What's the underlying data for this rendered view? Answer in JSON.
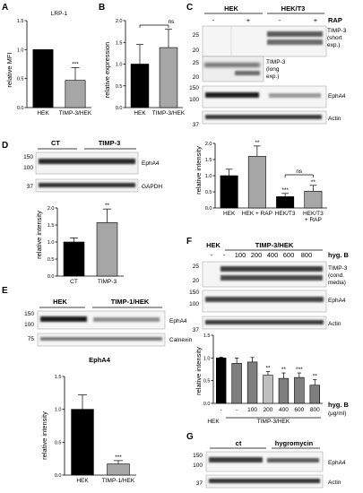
{
  "panels": {
    "A": {
      "label": "A",
      "title": "LRP-1",
      "ylabel": "relative MFI",
      "ticks": [
        "0.0",
        "0.5",
        "1.0",
        "1.5"
      ],
      "sig": "***",
      "chart_data": {
        "type": "bar",
        "categories": [
          "HEK",
          "TIMP-3/HEK"
        ],
        "values": [
          1.0,
          0.47
        ],
        "errors": [
          0,
          0.22
        ],
        "ylabel": "relative MFI",
        "ylim": [
          0,
          1.5
        ],
        "colors": [
          "#000000",
          "#a6a6a6"
        ]
      }
    },
    "B": {
      "label": "B",
      "ylabel": "relative expression",
      "ticks": [
        "0.0",
        "0.5",
        "1.0",
        "1.5",
        "2.0"
      ],
      "sig": "ns",
      "chart_data": {
        "type": "bar",
        "categories": [
          "HEK",
          "TIMP-3/HEK"
        ],
        "values": [
          1.0,
          1.38
        ],
        "errors": [
          0.45,
          0.42
        ],
        "ylabel": "relative expression",
        "ylim": [
          0,
          2.0
        ],
        "colors": [
          "#000000",
          "#a6a6a6"
        ]
      }
    },
    "C": {
      "label": "C",
      "group_hek": "HEK",
      "group_t3": "HEK/T3",
      "rap_label": "RAP",
      "rap_signs": [
        "-",
        "+",
        "-",
        "+"
      ],
      "blots": {
        "timp3_short": {
          "label_lines": [
            "TIMP-3",
            "(short",
            "exp.)"
          ],
          "markers": [
            "25",
            "20"
          ]
        },
        "timp3_long": {
          "label_lines": [
            "TIMP-3",
            "(long",
            "exp.)"
          ],
          "markers": [
            "25",
            "20"
          ]
        },
        "epha4": {
          "label": "EphA4",
          "markers": [
            "150",
            "100"
          ]
        },
        "actin": {
          "label": "Actin",
          "markers": [
            "37"
          ]
        }
      },
      "ylabel": "relative intensity",
      "ticks": [
        "0.0",
        "0.5",
        "1.0",
        "1.5",
        "2.0"
      ],
      "sig": [
        "",
        "**",
        "***",
        "**"
      ],
      "ns_label": "ns",
      "x_label_lines": [
        [
          "HEK"
        ],
        [
          "HEK + RAP"
        ],
        [
          "HEK/T3"
        ],
        [
          "HEK/T3",
          "+ RAP"
        ]
      ],
      "chart_data": {
        "type": "bar",
        "categories": [
          "HEK",
          "HEK + RAP",
          "HEK/T3",
          "HEK/T3 + RAP"
        ],
        "values": [
          1.0,
          1.6,
          0.35,
          0.52
        ],
        "errors": [
          0.2,
          0.32,
          0.1,
          0.18
        ],
        "ylabel": "relative intensity",
        "ylim": [
          0,
          2.0
        ],
        "colors": [
          "#000000",
          "#a6a6a6",
          "#000000",
          "#a6a6a6"
        ]
      }
    },
    "D": {
      "label": "D",
      "groups": [
        "CT",
        "TIMP-3"
      ],
      "blots": {
        "epha4": {
          "label": "EphA4",
          "markers": [
            "150",
            "100"
          ]
        },
        "gapdh": {
          "label": "GAPDH",
          "markers": [
            "37"
          ]
        }
      },
      "ylabel": "relative intensity",
      "ticks": [
        "0.0",
        "0.5",
        "1.0",
        "1.5",
        "2.0"
      ],
      "sig": "**",
      "chart_data": {
        "type": "bar",
        "categories": [
          "CT",
          "TIMP-3"
        ],
        "values": [
          1.0,
          1.57
        ],
        "errors": [
          0.12,
          0.4
        ],
        "ylabel": "relative intensity",
        "ylim": [
          0,
          2.0
        ],
        "colors": [
          "#000000",
          "#a6a6a6"
        ]
      }
    },
    "E": {
      "label": "E",
      "groups": [
        "HEK",
        "TIMP-1/HEK"
      ],
      "blots": {
        "epha4": {
          "label": "EphA4",
          "markers": [
            "150",
            "100"
          ]
        },
        "calnexin": {
          "label": "Calnexin",
          "markers": [
            "75"
          ]
        }
      },
      "chart_title": "EphA4",
      "ylabel": "relative intensity",
      "ticks": [
        "0.0",
        "0.5",
        "1.0",
        "1.5"
      ],
      "sig": "***",
      "chart_data": {
        "type": "bar",
        "categories": [
          "HEK",
          "TIMP-1/HEK"
        ],
        "values": [
          1.0,
          0.17
        ],
        "errors": [
          0.22,
          0.05
        ],
        "title": "EphA4",
        "ylabel": "relative intensity",
        "ylim": [
          0,
          1.5
        ],
        "colors": [
          "#000000",
          "#a6a6a6"
        ]
      }
    },
    "F": {
      "label": "F",
      "group_hek": "HEK",
      "group_timp3": "TIMP-3/HEK",
      "hygb_label": "hyg. B",
      "hygb_unit": "(µg/ml)",
      "doses": [
        "-",
        "-",
        "100",
        "200",
        "400",
        "600",
        "800"
      ],
      "blots": {
        "timp3": {
          "label_lines": [
            "TIMP-3",
            "(cond.",
            "media)"
          ],
          "markers": [
            "25",
            "20"
          ]
        },
        "epha4": {
          "label": "EphA4",
          "markers": [
            "150",
            "100"
          ]
        },
        "actin": {
          "label": "Actin",
          "markers": [
            "37"
          ]
        }
      },
      "ylabel": "relative intensity",
      "ticks": [
        "0.0",
        "0.5",
        "1.0",
        "1.5"
      ],
      "sig": [
        "",
        "",
        "",
        "**",
        "**",
        "***",
        "**"
      ],
      "chart_data": {
        "type": "bar",
        "categories": [
          "HEK -",
          "TIMP-3/HEK -",
          "100",
          "200",
          "400",
          "600",
          "800"
        ],
        "values": [
          1.0,
          0.88,
          0.91,
          0.62,
          0.55,
          0.57,
          0.4
        ],
        "errors": [
          0.02,
          0.12,
          0.1,
          0.08,
          0.12,
          0.1,
          0.12
        ],
        "ylabel": "relative intensity",
        "ylim": [
          0,
          1.5
        ],
        "colors": [
          "#000000",
          "#7f7f7f",
          "#7f7f7f",
          "#bfbfbf",
          "#7f7f7f",
          "#7f7f7f",
          "#7f7f7f"
        ]
      }
    },
    "G": {
      "label": "G",
      "groups": [
        "ct",
        "hygromycin"
      ],
      "blots": {
        "epha4": {
          "label": "EphA4",
          "markers": [
            "150",
            "100"
          ]
        },
        "actin": {
          "label": "Actin",
          "markers": [
            "37"
          ]
        }
      }
    }
  }
}
